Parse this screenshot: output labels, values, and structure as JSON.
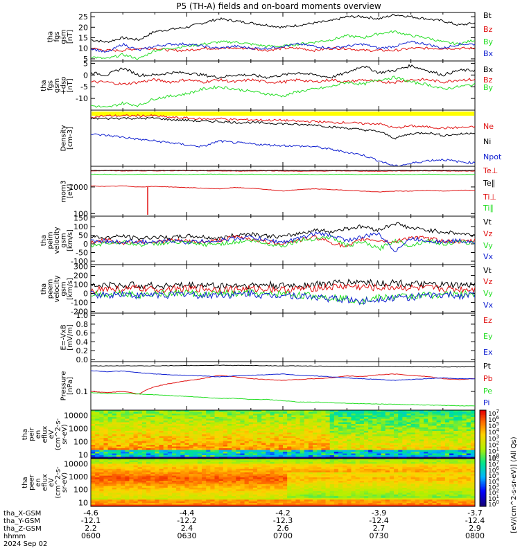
{
  "title": "P5 (TH-A) fields and on-board moments overview",
  "colors": {
    "black": "#000000",
    "red": "#e01010",
    "green": "#22dd22",
    "blue": "#1020d0",
    "yellow": "#ffff00"
  },
  "chart_data": [
    {
      "type": "line",
      "ylabel": [
        "tha",
        "fgs",
        "gsm",
        "[nT]"
      ],
      "ylim": [
        4,
        27
      ],
      "yticks": [
        "25",
        "20",
        "15",
        "10",
        "5"
      ],
      "series": [
        {
          "name": "Bt",
          "color": "black",
          "values": [
            14,
            13,
            15,
            14,
            18,
            19,
            20,
            22,
            24,
            23,
            22,
            21,
            20,
            21,
            22,
            23,
            25,
            25,
            24,
            26,
            25,
            24,
            23,
            21,
            22
          ]
        },
        {
          "name": "Bz",
          "color": "red",
          "values": [
            10,
            9,
            9,
            10,
            10,
            9,
            9,
            10,
            10,
            10,
            10,
            9,
            10,
            10,
            9,
            10,
            10,
            9,
            9,
            9,
            10,
            10,
            10,
            10,
            10
          ]
        },
        {
          "name": "By",
          "color": "green",
          "values": [
            6,
            5,
            7,
            5,
            9,
            10,
            11,
            12,
            13,
            13,
            12,
            11,
            11,
            12,
            13,
            14,
            16,
            15,
            17,
            18,
            16,
            15,
            13,
            12,
            14
          ]
        },
        {
          "name": "Bx",
          "color": "blue",
          "values": [
            10,
            8,
            12,
            9,
            11,
            12,
            12,
            11,
            10,
            11,
            10,
            10,
            11,
            12,
            11,
            10,
            11,
            12,
            10,
            11,
            13,
            12,
            10,
            12,
            12
          ]
        }
      ]
    },
    {
      "type": "line",
      "ylabel": [
        "tha",
        "fgs",
        "gsm",
        "+dsp",
        "[nT]"
      ],
      "ylim": [
        -15,
        6
      ],
      "yticks": [
        "5",
        "0",
        "-5",
        "-10"
      ],
      "series": [
        {
          "name": "Bx",
          "color": "black",
          "values": [
            1,
            0,
            3,
            0,
            0,
            1,
            1,
            0,
            -1,
            0,
            0,
            -1,
            0,
            1,
            0,
            -1,
            1,
            4,
            1,
            2,
            4,
            2,
            0,
            2,
            2
          ]
        },
        {
          "name": "Bz",
          "color": "red",
          "values": [
            -3,
            -3,
            -4,
            -3,
            -2,
            -3,
            -2,
            -3,
            -2,
            -3,
            -2,
            -3,
            -3,
            -2,
            -3,
            -2,
            -3,
            -2,
            -3,
            -3,
            -2,
            -2,
            -3,
            -2,
            -2
          ]
        },
        {
          "name": "By",
          "color": "green",
          "values": [
            -13,
            -14,
            -12,
            -13,
            -10,
            -9,
            -8,
            -6,
            -5,
            -6,
            -7,
            -8,
            -9,
            -7,
            -6,
            -5,
            -3,
            -4,
            -2,
            -1,
            -3,
            -4,
            -6,
            -5,
            -4
          ]
        }
      ]
    },
    {
      "type": "line",
      "ylabel": [
        "Density",
        "[cm-3]"
      ],
      "ylim": [
        0,
        1
      ],
      "yticks": [],
      "series": [
        {
          "name": "Ne",
          "color": "red",
          "values": [
            0.88,
            0.9,
            0.9,
            0.9,
            0.9,
            0.87,
            0.86,
            0.84,
            0.85,
            0.83,
            0.83,
            0.82,
            0.82,
            0.8,
            0.8,
            0.78,
            0.78,
            0.76,
            0.76,
            0.68,
            0.72,
            0.7,
            0.68,
            0.69,
            0.7
          ]
        },
        {
          "name": "Ni",
          "color": "black",
          "values": [
            0.85,
            0.85,
            0.86,
            0.85,
            0.86,
            0.83,
            0.82,
            0.8,
            0.8,
            0.78,
            0.78,
            0.77,
            0.76,
            0.74,
            0.74,
            0.7,
            0.68,
            0.65,
            0.62,
            0.5,
            0.58,
            0.6,
            0.55,
            0.57,
            0.6
          ]
        },
        {
          "name": "Npot",
          "color": "blue",
          "values": [
            0.57,
            0.55,
            0.52,
            0.48,
            0.45,
            0.42,
            0.38,
            0.35,
            0.45,
            0.42,
            0.4,
            0.38,
            0.37,
            0.36,
            0.35,
            0.3,
            0.25,
            0.2,
            0.1,
            0,
            0.05,
            0.1,
            0.12,
            0.08,
            0.06
          ]
        }
      ]
    },
    {
      "type": "line",
      "ylabel": [
        "mom3",
        "[eV]"
      ],
      "ylim": [
        80,
        6000
      ],
      "scale": "log",
      "yticks": [
        "1000",
        "100"
      ],
      "series": [
        {
          "name": "Te⊥",
          "color": "red",
          "values": [
            4000,
            4100,
            4000,
            4050,
            4000,
            4100,
            4050,
            4000,
            4000,
            3950,
            4000,
            4050,
            4000,
            3900,
            3950,
            4000,
            4000,
            3950,
            3900,
            4000,
            4000,
            4050,
            4000,
            3950,
            4000
          ]
        },
        {
          "name": "Te∥",
          "color": "black",
          "values": [
            4200,
            4150,
            4200,
            4150,
            4200,
            4150,
            4200,
            4150,
            4200,
            4150,
            4200,
            4150,
            4200,
            4150,
            4200,
            4150,
            4200,
            4150,
            4200,
            4150,
            4200,
            4150,
            4200,
            4150,
            4200
          ]
        },
        {
          "name": "Ti⊥",
          "color": "red",
          "values": [
            1100,
            1050,
            1100,
            1000,
            1050,
            1000,
            950,
            900,
            850,
            950,
            900,
            800,
            700,
            800,
            850,
            800,
            750,
            700,
            650,
            700,
            700,
            750,
            700,
            750,
            750
          ]
        },
        {
          "name": "Ti∥",
          "color": "green",
          "values": [
            3000,
            3000,
            2900,
            3000,
            2950,
            3000,
            2900,
            3000,
            3000,
            2900,
            3000,
            2950,
            2900,
            3000,
            2900,
            2950,
            3000,
            2900,
            3000,
            2950,
            2900,
            3000,
            2950,
            2900,
            3000
          ]
        }
      ]
    },
    {
      "type": "line",
      "ylabel": [
        "tha",
        "peim",
        "velocity",
        "gsm",
        "[km/s]"
      ],
      "ylim": [
        -120,
        160
      ],
      "yticks": [
        "150",
        "100",
        "50",
        "0",
        "-50",
        "-100"
      ],
      "series": [
        {
          "name": "Vt",
          "color": "black",
          "values": [
            40,
            35,
            45,
            30,
            40,
            35,
            45,
            40,
            30,
            50,
            60,
            45,
            40,
            60,
            80,
            70,
            90,
            100,
            80,
            120,
            90,
            80,
            70,
            60,
            50
          ]
        },
        {
          "name": "Vz",
          "color": "red",
          "values": [
            10,
            20,
            5,
            15,
            10,
            20,
            15,
            10,
            20,
            40,
            30,
            10,
            5,
            20,
            40,
            10,
            -20,
            30,
            20,
            10,
            40,
            30,
            20,
            10,
            20
          ]
        },
        {
          "name": "Vy",
          "color": "green",
          "values": [
            -10,
            5,
            10,
            -5,
            0,
            10,
            5,
            -5,
            0,
            10,
            20,
            0,
            -10,
            20,
            30,
            40,
            -10,
            10,
            -30,
            20,
            -10,
            20,
            0,
            10,
            5
          ]
        },
        {
          "name": "Vx",
          "color": "blue",
          "values": [
            20,
            15,
            10,
            15,
            5,
            20,
            10,
            15,
            20,
            30,
            40,
            20,
            10,
            30,
            60,
            50,
            20,
            40,
            60,
            -40,
            30,
            20,
            10,
            20,
            10
          ]
        }
      ]
    },
    {
      "type": "line",
      "ylabel": [
        "tha",
        "peem",
        "velocity",
        "gsm",
        "[km/s]"
      ],
      "ylim": [
        -220,
        320
      ],
      "yticks": [
        "300",
        "200",
        "100",
        "0",
        "-100",
        "-200"
      ],
      "series": [
        {
          "name": "Vt",
          "color": "black",
          "values": [
            80,
            90,
            85,
            95,
            80,
            90,
            85,
            95,
            80,
            90,
            85,
            95,
            80,
            90,
            100,
            110,
            120,
            130,
            110,
            120,
            100,
            95,
            90,
            85,
            90
          ]
        },
        {
          "name": "Vz",
          "color": "red",
          "values": [
            40,
            50,
            45,
            55,
            40,
            50,
            45,
            55,
            40,
            50,
            45,
            55,
            40,
            50,
            60,
            70,
            80,
            70,
            60,
            70,
            60,
            55,
            50,
            45,
            50
          ]
        },
        {
          "name": "Vy",
          "color": "green",
          "values": [
            0,
            -10,
            10,
            -20,
            0,
            -10,
            10,
            -20,
            0,
            -10,
            10,
            -20,
            0,
            -20,
            -30,
            -40,
            -60,
            -80,
            -50,
            -40,
            -30,
            -20,
            -10,
            -15,
            -5
          ]
        },
        {
          "name": "Vx",
          "color": "blue",
          "values": [
            -10,
            -20,
            0,
            -30,
            -10,
            -20,
            0,
            -30,
            -10,
            -20,
            0,
            -30,
            -10,
            -30,
            -40,
            -60,
            -70,
            -90,
            -60,
            -50,
            -40,
            -30,
            -20,
            -25,
            -15
          ]
        }
      ]
    },
    {
      "type": "line",
      "ylabel": [
        "E=-VxB",
        "[mV/m]"
      ],
      "ylim": [
        -0.05,
        1.05
      ],
      "yticks": [
        "1.0",
        "0.8",
        "0.6",
        "0.4",
        "0.2",
        "0.0"
      ],
      "series": [
        {
          "name": "Ez",
          "color": "red",
          "values": []
        },
        {
          "name": "Ey",
          "color": "green",
          "values": []
        },
        {
          "name": "Ex",
          "color": "blue",
          "values": []
        }
      ]
    },
    {
      "type": "line",
      "ylabel": [
        "Pressure",
        "[nPa]"
      ],
      "ylim": [
        0.02,
        1.3
      ],
      "scale": "log",
      "yticks": [
        "0.1"
      ],
      "series": [
        {
          "name": "Pt",
          "color": "black",
          "values": [
            0.9,
            0.9,
            0.92,
            0.9,
            0.9,
            0.92,
            0.93,
            0.94,
            0.95,
            0.94,
            0.93,
            0.92,
            0.9,
            0.9,
            0.88,
            0.87,
            0.86,
            0.85,
            0.86,
            0.85,
            0.84,
            0.83,
            0.82,
            0.83,
            0.83
          ]
        },
        {
          "name": "Pb",
          "color": "red",
          "values": [
            0.1,
            0.09,
            0.1,
            0.08,
            0.15,
            0.2,
            0.25,
            0.3,
            0.4,
            0.35,
            0.3,
            0.28,
            0.26,
            0.28,
            0.3,
            0.32,
            0.38,
            0.36,
            0.42,
            0.45,
            0.4,
            0.36,
            0.3,
            0.28,
            0.3
          ]
        },
        {
          "name": "Pe",
          "color": "green",
          "values": [
            0.09,
            0.085,
            0.085,
            0.08,
            0.075,
            0.07,
            0.065,
            0.06,
            0.055,
            0.055,
            0.05,
            0.05,
            0.045,
            0.04,
            0.04,
            0.038,
            0.036,
            0.035,
            0.034,
            0.033,
            0.032,
            0.031,
            0.03,
            0.029,
            0.029
          ]
        },
        {
          "name": "Pi",
          "color": "blue",
          "values": [
            0.6,
            0.55,
            0.58,
            0.5,
            0.45,
            0.42,
            0.4,
            0.38,
            0.35,
            0.38,
            0.4,
            0.42,
            0.45,
            0.4,
            0.38,
            0.35,
            0.32,
            0.3,
            0.28,
            0.26,
            0.28,
            0.3,
            0.32,
            0.3,
            0.3
          ]
        }
      ]
    },
    {
      "type": "heatmap",
      "ylabel": [
        "tha",
        "peir",
        "en",
        "eflux",
        "eV",
        "(cm^2-s-",
        "sr-eV)"
      ],
      "yticks": [
        "10000",
        "1000",
        "100",
        "10"
      ],
      "ylim": [
        5,
        25000
      ],
      "scale": "log"
    },
    {
      "type": "heatmap",
      "ylabel": [
        "tha",
        "peer",
        "en",
        "eflux",
        "eV",
        "(cm^2-s-",
        "sr-eV)"
      ],
      "yticks": [
        "10000",
        "1000",
        "100",
        "10"
      ],
      "ylim": [
        5,
        25000
      ],
      "scale": "log"
    }
  ],
  "legend_labels": [
    [
      "Bt",
      "Bz",
      "By",
      "Bx"
    ],
    [
      "Bx",
      "Bz",
      "By"
    ],
    [
      "Ne",
      "Ni",
      "Npot"
    ],
    [
      "Te⊥",
      "Te∥",
      "Ti⊥",
      "Ti∥"
    ],
    [
      "Vt",
      "Vz",
      "Vy",
      "Vx"
    ],
    [
      "Vt",
      "Vz",
      "Vy",
      "Vx"
    ],
    [
      "Ez",
      "Ey",
      "Ex"
    ],
    [
      "Pt",
      "Pb",
      "Pe",
      "Pi"
    ]
  ],
  "colorbar": {
    "label": "[eV/(cm^2-s-sr-eV)] (All Qs)",
    "ticks_top": [
      "10^7",
      "10^6",
      "10^5",
      "10^4",
      "10^3",
      "10^2",
      "10^1",
      "10^0"
    ],
    "ticks_bottom": [
      "10^8",
      "10^7",
      "10^6",
      "10^5",
      "10^4",
      "10^3",
      "10^2",
      "10^1",
      "10^0"
    ]
  },
  "x_axis": {
    "row_labels": [
      "tha_X-GSM",
      "tha_Y-GSM",
      "tha_Z-GSM",
      "hhmm",
      "2024 Sep 02"
    ],
    "columns": [
      {
        "x": "-4.6",
        "y": "-12.1",
        "z": "2.2",
        "t": "0600"
      },
      {
        "x": "-4.4",
        "y": "-12.2",
        "z": "2.4",
        "t": "0630"
      },
      {
        "x": "-4.2",
        "y": "-12.3",
        "z": "2.6",
        "t": "0700"
      },
      {
        "x": "-3.9",
        "y": "-12.4",
        "z": "2.7",
        "t": "0730"
      },
      {
        "x": "-3.7",
        "y": "-12.4",
        "z": "2.9",
        "t": "0800"
      }
    ]
  }
}
